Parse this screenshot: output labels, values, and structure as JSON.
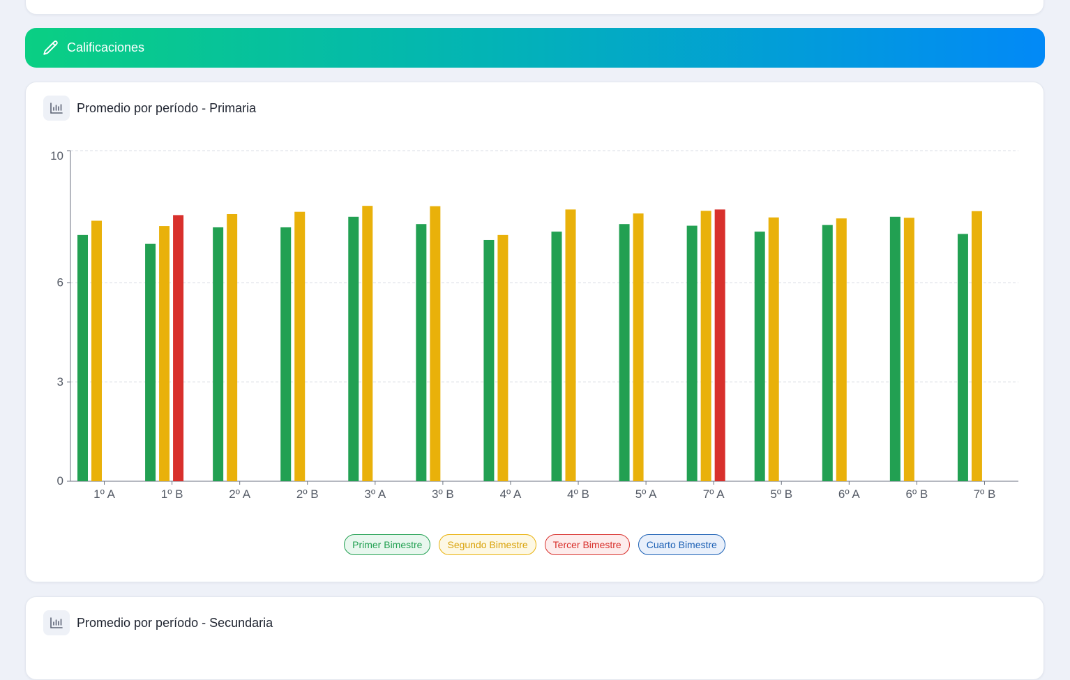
{
  "banner": {
    "title": "Calificaciones",
    "icon": "pencil-icon",
    "gradient": [
      "#0acf83",
      "#03b4b5",
      "#0289f7"
    ]
  },
  "primaria_card": {
    "title": "Promedio por período - Primaria",
    "icon": "bar-chart-icon"
  },
  "secundaria_card": {
    "title": "Promedio por período - Secundaria",
    "icon": "bar-chart-icon"
  },
  "legend": [
    {
      "label": "Primer Bimestre",
      "color": "#22a052",
      "bg": "#e8f7ee",
      "text": "#22a052"
    },
    {
      "label": "Segundo Bimestre",
      "color": "#e9b10a",
      "bg": "#fdf8e4",
      "text": "#d9a20a"
    },
    {
      "label": "Tercer Bimestre",
      "color": "#d8302c",
      "bg": "#fdecec",
      "text": "#d8302c"
    },
    {
      "label": "Cuarto Bimestre",
      "color": "#1a5fb4",
      "bg": "#e9f0fb",
      "text": "#1a5fb4"
    }
  ],
  "chart_data": {
    "type": "bar",
    "categories": [
      "1º A",
      "1º B",
      "2º A",
      "2º B",
      "3º A",
      "3º B",
      "4º A",
      "4º B",
      "5º A",
      "7º A",
      "5º B",
      "6º A",
      "6º B",
      "7º B"
    ],
    "series": [
      {
        "name": "Primer Bimestre",
        "color": "#22a052",
        "values": [
          7.45,
          7.18,
          7.68,
          7.68,
          8.0,
          7.78,
          7.3,
          7.55,
          7.78,
          7.73,
          7.55,
          7.75,
          8.0,
          7.48
        ]
      },
      {
        "name": "Segundo Bimestre",
        "color": "#e9b10a",
        "values": [
          7.88,
          7.72,
          8.08,
          8.15,
          8.33,
          8.32,
          7.45,
          8.22,
          8.1,
          8.18,
          7.98,
          7.95,
          7.97,
          8.17
        ]
      },
      {
        "name": "Tercer Bimestre",
        "color": "#d8302c",
        "values": [
          null,
          8.05,
          null,
          null,
          null,
          null,
          null,
          null,
          null,
          8.22,
          null,
          null,
          null,
          null
        ]
      },
      {
        "name": "Cuarto Bimestre",
        "color": "#1a5fb4",
        "values": [
          null,
          null,
          null,
          null,
          null,
          null,
          null,
          null,
          null,
          null,
          null,
          null,
          null,
          null
        ]
      }
    ],
    "yticks": [
      0,
      3,
      6,
      10
    ],
    "ylim": [
      0,
      10
    ],
    "grid": true,
    "legend_position": "bottom-center"
  }
}
